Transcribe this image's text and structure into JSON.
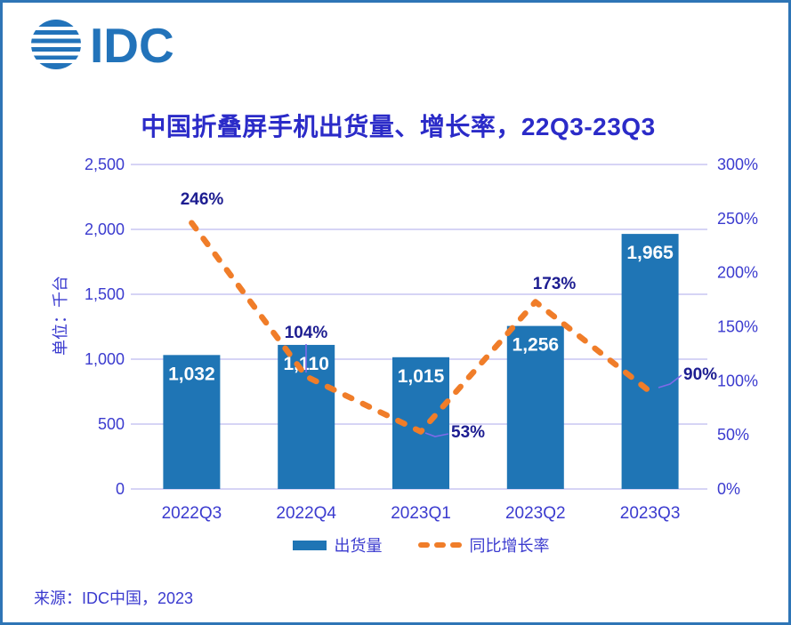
{
  "logo": {
    "icon": "idc-globe-icon",
    "text": "IDC"
  },
  "title": "中国折叠屏手机出货量、增长率，22Q3-23Q3",
  "source": "来源：IDC中国，2023",
  "colors": {
    "bar_blue": "#1F75B5",
    "line_orange": "#F07D29",
    "axis_text": "#3B3BCF",
    "data_label_navy": "#1D1D91",
    "gridline": "#C8C6F2",
    "leader_line_purple": "#7F6AE8",
    "frame_border": "#2E75B6",
    "title_blue": "#2B2BC8",
    "logo_blue": "#2273BA",
    "bar_value_text": "#FFFFFF"
  },
  "chart_data": {
    "type": "bar",
    "subtype": "bar+dashed-line-combo",
    "title": "中国折叠屏手机出货量、增长率，22Q3-23Q3",
    "unit_label": "单位：千台",
    "categories": [
      "2022Q3",
      "2022Q4",
      "2023Q1",
      "2023Q2",
      "2023Q3"
    ],
    "series": [
      {
        "name": "出货量",
        "type": "bar",
        "axis": "left",
        "values": [
          1032,
          1110,
          1015,
          1256,
          1965
        ],
        "labels": [
          "1,032",
          "1,110",
          "1,015",
          "1,256",
          "1,965"
        ]
      },
      {
        "name": "同比增长率",
        "type": "line",
        "line_style": "dashed",
        "axis": "right",
        "values": [
          246,
          104,
          53,
          173,
          90
        ],
        "labels": [
          "246%",
          "104%",
          "53%",
          "173%",
          "90%"
        ]
      }
    ],
    "left_axis": {
      "min": 0,
      "max": 2500,
      "step": 500,
      "tick_labels": [
        "0",
        "500",
        "1,000",
        "1,500",
        "2,000",
        "2,500"
      ]
    },
    "right_axis": {
      "min": 0,
      "max": 300,
      "step": 50,
      "tick_labels": [
        "0%",
        "50%",
        "100%",
        "150%",
        "200%",
        "250%",
        "300%"
      ]
    },
    "grid": true,
    "legend_position": "bottom"
  }
}
